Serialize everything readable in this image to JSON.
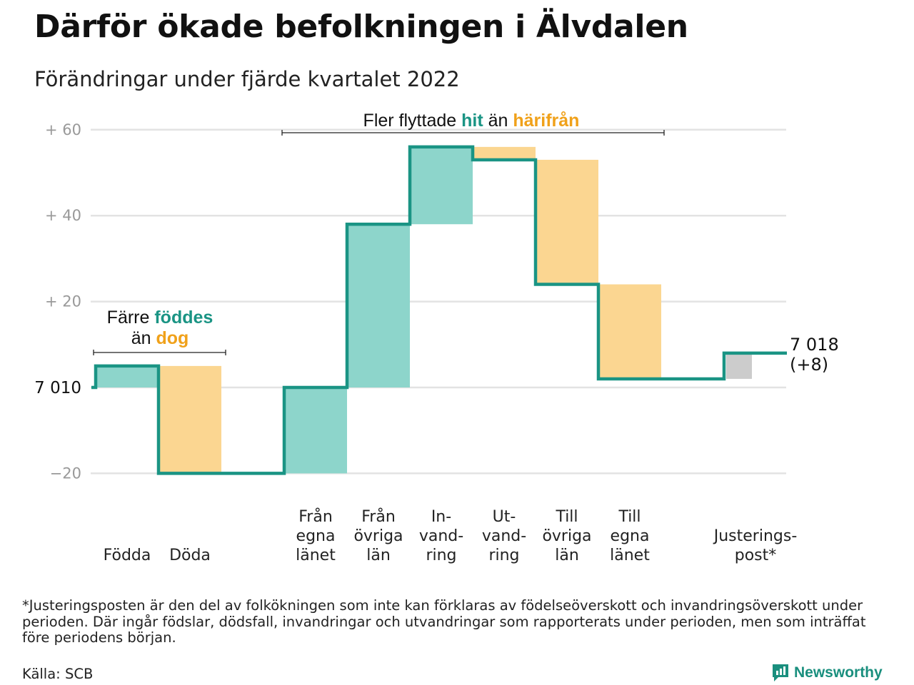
{
  "header": {
    "title": "Därför ökade befolkningen i Älvdalen",
    "subtitle": "Förändringar under fjärde kvartalet 2022"
  },
  "annotations": {
    "moved": {
      "prefix": "Fler flyttade ",
      "hit": "hit",
      "mid": " än ",
      "harifran": "härifrån"
    },
    "born": {
      "line1_prefix": "Färre ",
      "line1_accent": "föddes",
      "line2_prefix": "än ",
      "line2_accent": "dog"
    }
  },
  "chart_data": {
    "type": "waterfall",
    "start_label": "7 010",
    "end_label_value": "7 018",
    "end_label_change": "(+8)",
    "y_ticks": [
      {
        "value": 60,
        "label": "+ 60"
      },
      {
        "value": 40,
        "label": "+ 40"
      },
      {
        "value": 20,
        "label": "+ 20"
      },
      {
        "value": -20,
        "label": "−20"
      }
    ],
    "ylim": [
      -20,
      60
    ],
    "steps": [
      {
        "label": [
          "Födda"
        ],
        "change": 5,
        "kind": "gain"
      },
      {
        "label": [
          "Döda"
        ],
        "change": -25,
        "kind": "loss"
      },
      {
        "label": [],
        "change": 0,
        "kind": "gap"
      },
      {
        "label": [
          "Från",
          "egna",
          "länet"
        ],
        "change": 20,
        "kind": "gain"
      },
      {
        "label": [
          "Från",
          "övriga",
          "län"
        ],
        "change": 38,
        "kind": "gain"
      },
      {
        "label": [
          "In-",
          "vand-",
          "ring"
        ],
        "change": 18,
        "kind": "gain"
      },
      {
        "label": [
          "Ut-",
          "vand-",
          "ring"
        ],
        "change": -3,
        "kind": "loss"
      },
      {
        "label": [
          "Till",
          "övriga",
          "län"
        ],
        "change": -29,
        "kind": "loss"
      },
      {
        "label": [
          "Till",
          "egna",
          "länet"
        ],
        "change": -22,
        "kind": "loss"
      },
      {
        "label": [],
        "change": 0,
        "kind": "gap"
      },
      {
        "label": [
          "Justerings-",
          "post*"
        ],
        "change": 6,
        "kind": "adjust"
      }
    ],
    "colors": {
      "gain": "#8dd5cb",
      "loss": "#fbd691",
      "adjust": "#cccccc",
      "line": "#1a9484",
      "grid": "#e3e3e3",
      "accent_teal": "#1a9484",
      "accent_orange": "#f0a11a"
    }
  },
  "footer": {
    "footnote": "*Justeringsposten är den del av folkökningen som inte kan förklaras av födelseöverskott och invandringsöverskott under perioden. Där ingår födslar, dödsfall, invandringar och utvandringar som rapporterats under perioden, men som inträffat före periodens början.",
    "source": "Källa: SCB",
    "brand": "Newsworthy"
  }
}
